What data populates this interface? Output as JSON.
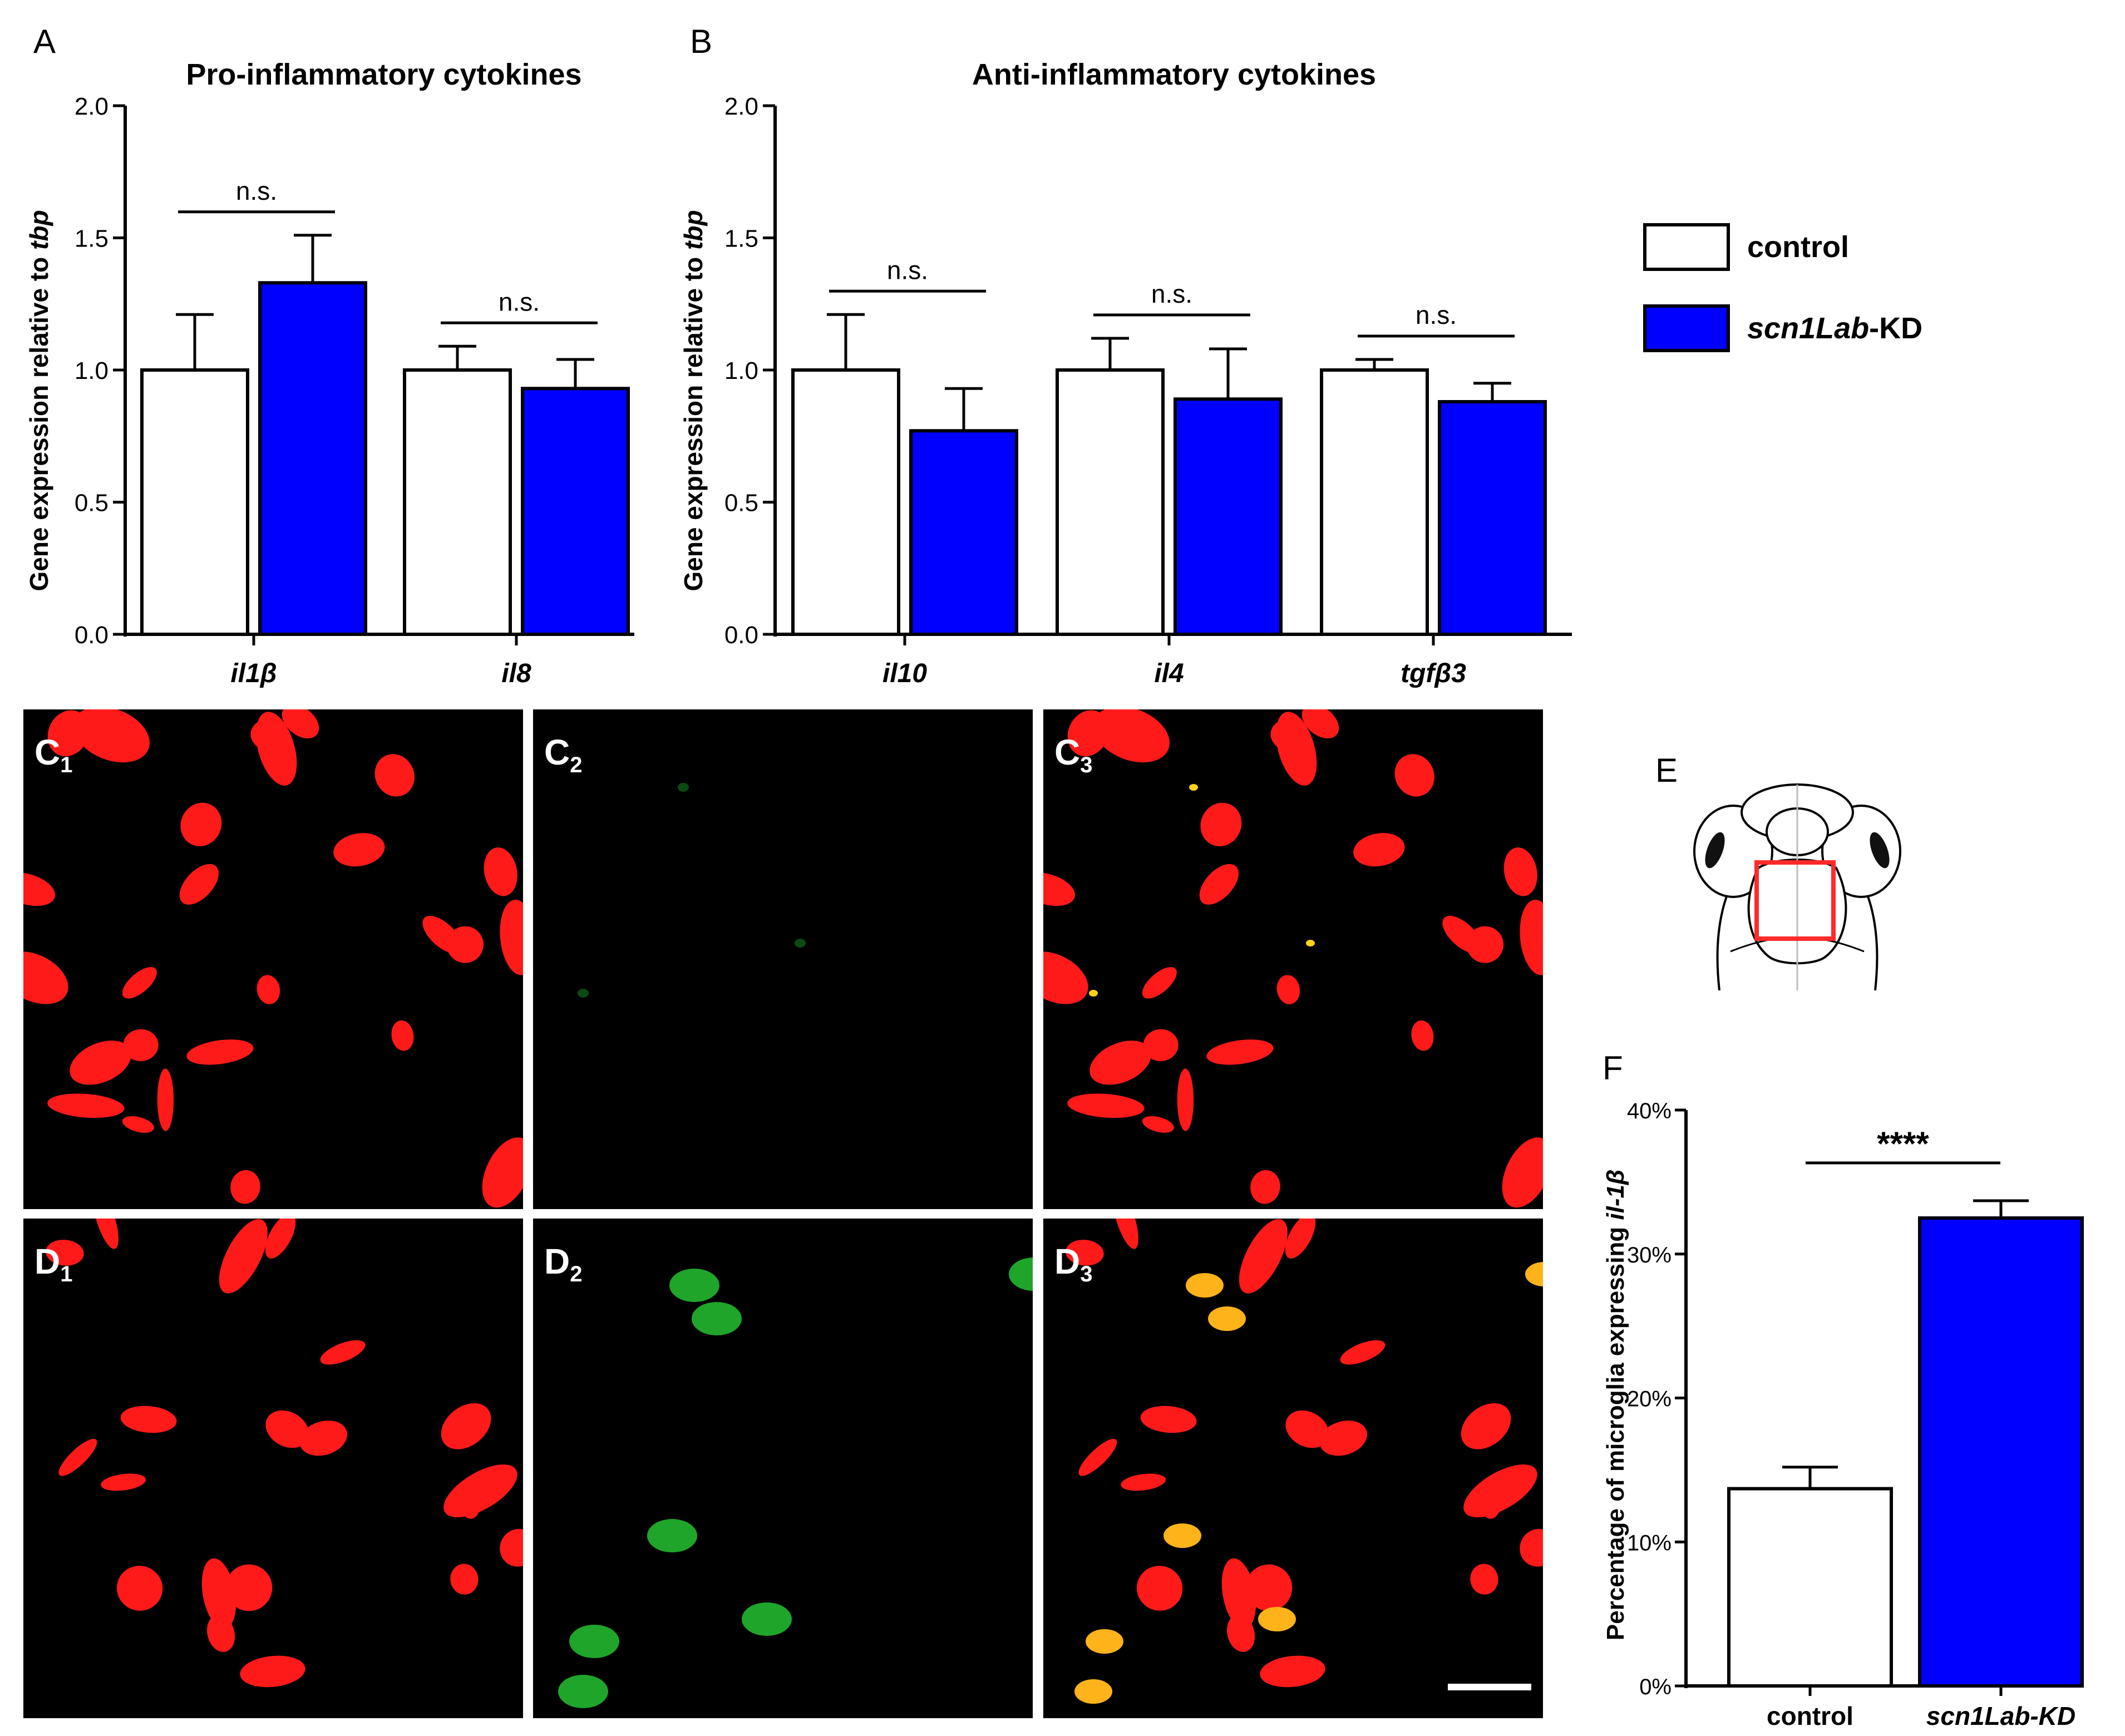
{
  "figure": {
    "panel_letters": {
      "A": "A",
      "B": "B",
      "E": "E",
      "F": "F"
    },
    "image_panels": [
      {
        "id": "C1",
        "letter": "C",
        "sub": "1",
        "channel": "red"
      },
      {
        "id": "C2",
        "letter": "C",
        "sub": "2",
        "channel": "green"
      },
      {
        "id": "C3",
        "letter": "C",
        "sub": "3",
        "channel": "merge"
      },
      {
        "id": "D1",
        "letter": "D",
        "sub": "1",
        "channel": "red"
      },
      {
        "id": "D2",
        "letter": "D",
        "sub": "2",
        "channel": "green"
      },
      {
        "id": "D3",
        "letter": "D",
        "sub": "3",
        "channel": "merge"
      }
    ],
    "legend": {
      "items": [
        {
          "label": "control",
          "color": "#ffffff"
        },
        {
          "label_italic": "scn1Lab",
          "label_rest": "-KD",
          "color": "#0000ff"
        }
      ]
    },
    "colors": {
      "control": "#ffffff",
      "kd": "#0000ff",
      "box": "#ff2a2a"
    }
  },
  "chart_data": [
    {
      "id": "A",
      "type": "bar",
      "title": "Pro-inflammatory cytokines",
      "ylabel_plain": "Gene expression relative to ",
      "ylabel_italic": "tbp",
      "ylim": [
        0,
        2.0
      ],
      "yticks": [
        "0.0",
        "0.5",
        "1.0",
        "1.5",
        "2.0"
      ],
      "categories": [
        "il1β",
        "il8"
      ],
      "series": [
        {
          "name": "control",
          "values": [
            1.0,
            1.0
          ],
          "errors": [
            0.21,
            0.09
          ]
        },
        {
          "name": "scn1Lab-KD",
          "values": [
            1.33,
            0.93
          ],
          "errors": [
            0.18,
            0.11
          ]
        }
      ],
      "significance": [
        "n.s.",
        "n.s."
      ]
    },
    {
      "id": "B",
      "type": "bar",
      "title": "Anti-inflammatory cytokines",
      "ylabel_plain": "Gene expression relative to ",
      "ylabel_italic": "tbp",
      "ylim": [
        0,
        2.0
      ],
      "yticks": [
        "0.0",
        "0.5",
        "1.0",
        "1.5",
        "2.0"
      ],
      "categories": [
        "il10",
        "il4",
        "tgfβ3"
      ],
      "series": [
        {
          "name": "control",
          "values": [
            1.0,
            1.0,
            1.0
          ],
          "errors": [
            0.21,
            0.12,
            0.04
          ]
        },
        {
          "name": "scn1Lab-KD",
          "values": [
            0.77,
            0.89,
            0.88
          ],
          "errors": [
            0.16,
            0.19,
            0.07
          ]
        }
      ],
      "significance": [
        "n.s.",
        "n.s.",
        "n.s."
      ]
    },
    {
      "id": "F",
      "type": "bar",
      "ylabel_plain": "Percentage of microglia expressing ",
      "ylabel_italic": "il-1β",
      "ylim": [
        0,
        40
      ],
      "yticks": [
        "0%",
        "10%",
        "20%",
        "30%",
        "40%"
      ],
      "categories": [
        "control",
        "scn1Lab-KD"
      ],
      "values": [
        13.7,
        32.5
      ],
      "errors": [
        1.5,
        1.2
      ],
      "significance": "****"
    }
  ]
}
